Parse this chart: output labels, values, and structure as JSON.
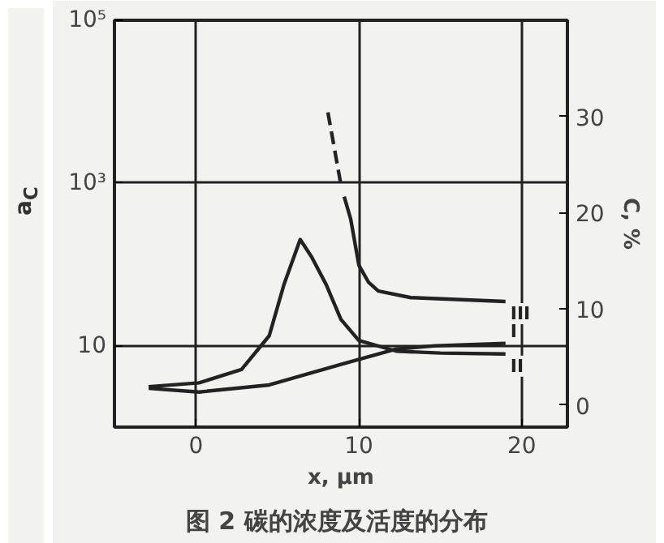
{
  "chart_data": {
    "type": "line",
    "title": "图 2  碳的浓度及活度的分布",
    "xlabel": "x, μm",
    "ylabel": "a$_{C}$",
    "y2label": "C, %",
    "xlim": [
      -5,
      22.8
    ],
    "xticks": [
      0,
      10,
      20
    ],
    "ylim": [
      1,
      100000
    ],
    "yticks": [
      {
        "value": 10,
        "label": "10"
      },
      {
        "value": 1000,
        "label": "10³"
      },
      {
        "value": 100000,
        "label": "10⁵"
      }
    ],
    "y2lim": [
      -2.3,
      40
    ],
    "y2ticks": [
      0,
      10,
      20,
      30
    ],
    "log": "y",
    "grid": true,
    "legend": false,
    "marker": "none",
    "line_style": "solid",
    "series": [
      {
        "name": "I",
        "color": "#222222",
        "x": [
          -2.9,
          0.2,
          4.5,
          8.9,
          12.3,
          14.7,
          19.0
        ],
        "values": [
          3.0,
          2.7,
          3.3,
          5.9,
          9.1,
          10,
          10.7
        ]
      },
      {
        "name": "II",
        "color": "#222222",
        "axis": "y2",
        "x": [
          -2.9,
          0.2,
          2.8,
          4.5,
          5.4,
          6.4,
          7.1,
          8.0,
          8.9,
          10,
          12.3,
          15,
          19.0
        ],
        "values": [
          1.9,
          2.3,
          3.7,
          7.2,
          12.5,
          17.2,
          15.4,
          12.5,
          8.9,
          6.7,
          5.6,
          5.4,
          5.3
        ]
      },
      {
        "color": "#222222",
        "line_style": "dashed",
        "x": [
          8.1,
          8.9
        ],
        "values": [
          7400,
          950
        ]
      },
      {
        "name": "III",
        "color": "#222222",
        "x": [
          9.1,
          9.5,
          10,
          10.6,
          11.2,
          13.2,
          19.0
        ],
        "values": [
          680,
          360,
          98,
          60,
          47,
          39,
          35
        ]
      }
    ]
  }
}
